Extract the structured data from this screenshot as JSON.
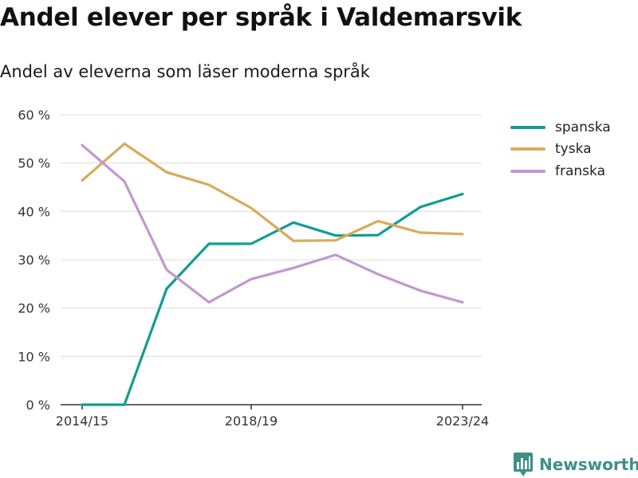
{
  "header": {
    "title": "Andel elever per språk i Valdemarsvik",
    "subtitle": "Andel av eleverna som läser moderna språk"
  },
  "brand": {
    "name": "Newsworthy",
    "color": "#3f8f88",
    "icon": "bar-chart-logo-icon"
  },
  "chart_data": {
    "type": "line",
    "title": "Andel elever per språk i Valdemarsvik",
    "subtitle": "Andel av eleverna som läser moderna språk",
    "xlabel": "",
    "ylabel": "",
    "x": [
      "2014/15",
      "2015/16",
      "2016/17",
      "2017/18",
      "2018/19",
      "2019/20",
      "2020/21",
      "2021/22",
      "2022/23",
      "2023/24"
    ],
    "x_tick_labels": [
      "2014/15",
      "2018/19",
      "2023/24"
    ],
    "ylim": [
      0,
      60
    ],
    "y_ticks": [
      0,
      10,
      20,
      30,
      40,
      50,
      60
    ],
    "y_tick_labels": [
      "0 %",
      "10 %",
      "20 %",
      "30 %",
      "40 %",
      "50 %",
      "60 %"
    ],
    "grid": true,
    "legend_position": "top-right",
    "series": [
      {
        "name": "spanska",
        "color": "#0f9e91",
        "values": [
          0,
          0,
          24,
          33.3,
          33.3,
          37.7,
          35,
          35.1,
          40.9,
          43.6
        ]
      },
      {
        "name": "tyska",
        "color": "#d9ab5a",
        "values": [
          46.4,
          54,
          48.1,
          45.5,
          40.7,
          33.9,
          34,
          38,
          35.6,
          35.3
        ]
      },
      {
        "name": "franska",
        "color": "#c497d0",
        "values": [
          53.7,
          46.2,
          27.9,
          21.2,
          26,
          28.3,
          31,
          27,
          23.6,
          21.2
        ]
      }
    ]
  }
}
